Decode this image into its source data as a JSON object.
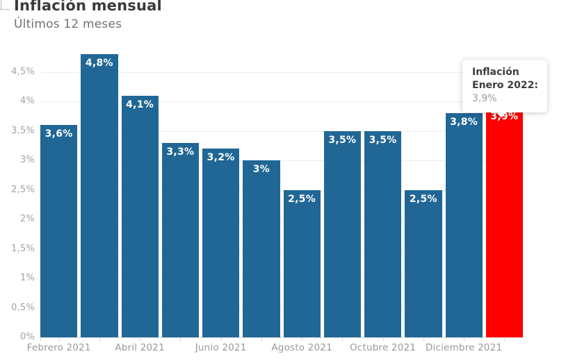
{
  "header": {
    "title": "Inflación mensual",
    "subtitle": "Últimos 12 meses"
  },
  "tooltip": {
    "title": "Inflación",
    "label": "Enero 2022:",
    "value": "3,9%"
  },
  "colors": {
    "bar": "#206795",
    "highlight": "#fe0000",
    "grid": "#ececec",
    "baseline": "#d9d9d9",
    "axis_text": "#9b9ba1",
    "bar_label_text": "#ffffff",
    "title_text": "#3a3a3a",
    "subtitle_text": "#717171"
  },
  "chart_data": {
    "type": "bar",
    "title": "Inflación mensual",
    "subtitle": "Últimos 12 meses",
    "unit": "%",
    "values": [
      3.6,
      4.8,
      4.1,
      3.3,
      3.2,
      3.0,
      2.5,
      3.5,
      3.5,
      2.5,
      3.8,
      3.9
    ],
    "value_labels": [
      "3,6%",
      "4,8%",
      "4,1%",
      "3,3%",
      "3,2%",
      "3%",
      "2,5%",
      "3,5%",
      "3,5%",
      "2,5%",
      "3,8%",
      "3,9%"
    ],
    "highlight_index": 11,
    "highlight_label": "Enero 2022",
    "x_tick_labels": [
      "Febrero 2021",
      "Abril 2021",
      "Junio 2021",
      "Agosto 2021",
      "Octubre 2021",
      "Diciembre 2021"
    ],
    "x_tick_bar_indexes": [
      0,
      2,
      4,
      6,
      8,
      10
    ],
    "y_tick_labels": [
      "0%",
      "0,5%",
      "1%",
      "1,5%",
      "2%",
      "2,5%",
      "3%",
      "3,5%",
      "4%",
      "4,5%"
    ],
    "y_tick_values": [
      0,
      0.5,
      1,
      1.5,
      2,
      2.5,
      3,
      3.5,
      4,
      4.5
    ],
    "ylim": [
      0,
      4.8
    ],
    "grid": true,
    "legend": false
  }
}
